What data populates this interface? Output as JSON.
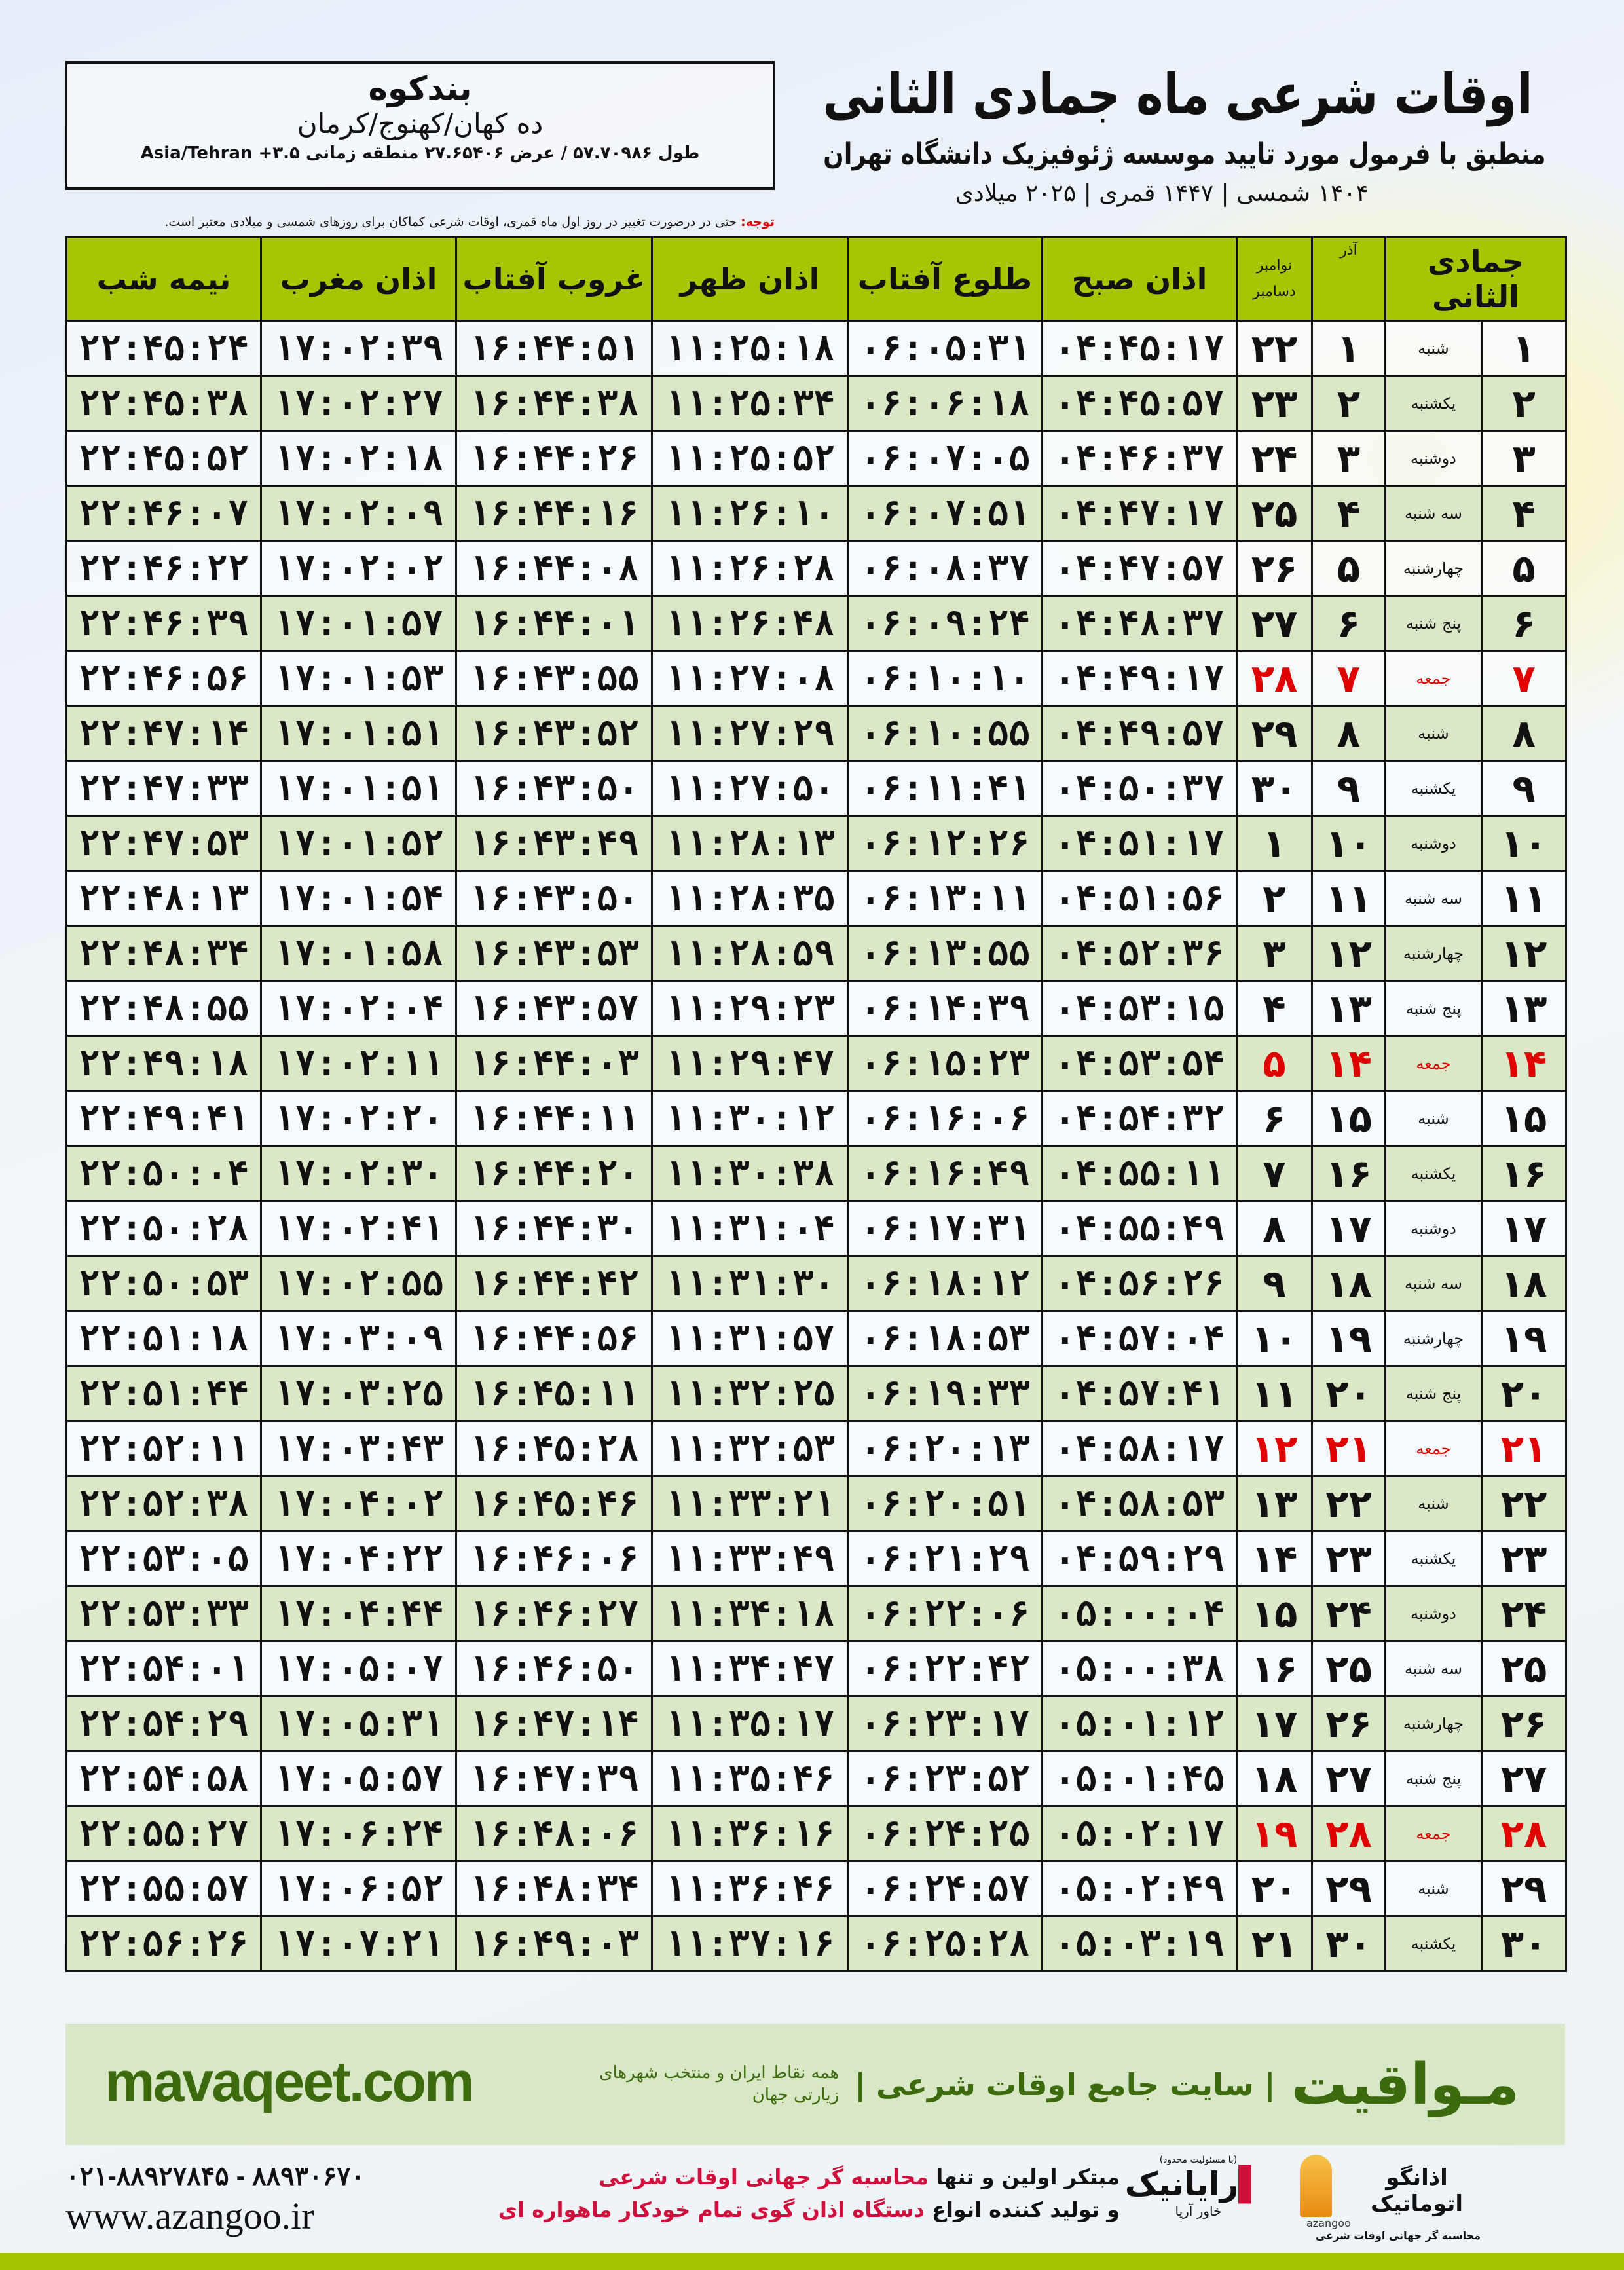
{
  "header": {
    "title": "اوقات شرعی ماه جمادی الثانی",
    "subtitle": "منطبق با فرمول مورد تایید موسسه ژئوفیزیک دانشگاه تهران",
    "years": "۱۴۰۴ شمسی | ۱۴۴۷ قمری | ۲۰۲۵ میلادی"
  },
  "location": {
    "city": "بندکوه",
    "region": "ده کهان/کهنوج/کرمان",
    "coords": "طول ۵۷.۷۰۹۸۶ / عرض ۲۷.۶۵۴۰۶ منطقه زمانی ۳.۵+ Asia/Tehran"
  },
  "note": {
    "label": "توجه:",
    "text": " حتی در درصورت تغییر در روز اول ماه قمری، اوقات شرعی کماکان برای روزهای شمسی و میلادی معتبر است."
  },
  "table": {
    "columns": {
      "hijri": "جمادی الثانی",
      "azar": "آذر",
      "greg_top": "نوامبر",
      "greg_bottom": "دسامبر",
      "fajr": "اذان صبح",
      "sunrise": "طلوع آفتاب",
      "dhuhr": "اذان ظهر",
      "sunset": "غروب آفتاب",
      "maghrib": "اذان مغرب",
      "midnight": "نیمه شب"
    },
    "friday_color": "#e00000",
    "header_color": "#a7c500",
    "rows": [
      [
        "۱",
        "شنبه",
        "۱",
        "۲۲",
        "۰۴:۴۵:۱۷",
        "۰۶:۰۵:۳۱",
        "۱۱:۲۵:۱۸",
        "۱۶:۴۴:۵۱",
        "۱۷:۰۲:۳۹",
        "۲۲:۴۵:۲۴"
      ],
      [
        "۲",
        "یکشنبه",
        "۲",
        "۲۳",
        "۰۴:۴۵:۵۷",
        "۰۶:۰۶:۱۸",
        "۱۱:۲۵:۳۴",
        "۱۶:۴۴:۳۸",
        "۱۷:۰۲:۲۷",
        "۲۲:۴۵:۳۸"
      ],
      [
        "۳",
        "دوشنبه",
        "۳",
        "۲۴",
        "۰۴:۴۶:۳۷",
        "۰۶:۰۷:۰۵",
        "۱۱:۲۵:۵۲",
        "۱۶:۴۴:۲۶",
        "۱۷:۰۲:۱۸",
        "۲۲:۴۵:۵۲"
      ],
      [
        "۴",
        "سه شنبه",
        "۴",
        "۲۵",
        "۰۴:۴۷:۱۷",
        "۰۶:۰۷:۵۱",
        "۱۱:۲۶:۱۰",
        "۱۶:۴۴:۱۶",
        "۱۷:۰۲:۰۹",
        "۲۲:۴۶:۰۷"
      ],
      [
        "۵",
        "چهارشنبه",
        "۵",
        "۲۶",
        "۰۴:۴۷:۵۷",
        "۰۶:۰۸:۳۷",
        "۱۱:۲۶:۲۸",
        "۱۶:۴۴:۰۸",
        "۱۷:۰۲:۰۲",
        "۲۲:۴۶:۲۲"
      ],
      [
        "۶",
        "پنج شنبه",
        "۶",
        "۲۷",
        "۰۴:۴۸:۳۷",
        "۰۶:۰۹:۲۴",
        "۱۱:۲۶:۴۸",
        "۱۶:۴۴:۰۱",
        "۱۷:۰۱:۵۷",
        "۲۲:۴۶:۳۹"
      ],
      [
        "۷",
        "جمعه",
        "۷",
        "۲۸",
        "۰۴:۴۹:۱۷",
        "۰۶:۱۰:۱۰",
        "۱۱:۲۷:۰۸",
        "۱۶:۴۳:۵۵",
        "۱۷:۰۱:۵۳",
        "۲۲:۴۶:۵۶"
      ],
      [
        "۸",
        "شنبه",
        "۸",
        "۲۹",
        "۰۴:۴۹:۵۷",
        "۰۶:۱۰:۵۵",
        "۱۱:۲۷:۲۹",
        "۱۶:۴۳:۵۲",
        "۱۷:۰۱:۵۱",
        "۲۲:۴۷:۱۴"
      ],
      [
        "۹",
        "یکشنبه",
        "۹",
        "۳۰",
        "۰۴:۵۰:۳۷",
        "۰۶:۱۱:۴۱",
        "۱۱:۲۷:۵۰",
        "۱۶:۴۳:۵۰",
        "۱۷:۰۱:۵۱",
        "۲۲:۴۷:۳۳"
      ],
      [
        "۱۰",
        "دوشنبه",
        "۱۰",
        "۱",
        "۰۴:۵۱:۱۷",
        "۰۶:۱۲:۲۶",
        "۱۱:۲۸:۱۳",
        "۱۶:۴۳:۴۹",
        "۱۷:۰۱:۵۲",
        "۲۲:۴۷:۵۳"
      ],
      [
        "۱۱",
        "سه شنبه",
        "۱۱",
        "۲",
        "۰۴:۵۱:۵۶",
        "۰۶:۱۳:۱۱",
        "۱۱:۲۸:۳۵",
        "۱۶:۴۳:۵۰",
        "۱۷:۰۱:۵۴",
        "۲۲:۴۸:۱۳"
      ],
      [
        "۱۲",
        "چهارشنبه",
        "۱۲",
        "۳",
        "۰۴:۵۲:۳۶",
        "۰۶:۱۳:۵۵",
        "۱۱:۲۸:۵۹",
        "۱۶:۴۳:۵۳",
        "۱۷:۰۱:۵۸",
        "۲۲:۴۸:۳۴"
      ],
      [
        "۱۳",
        "پنج شنبه",
        "۱۳",
        "۴",
        "۰۴:۵۳:۱۵",
        "۰۶:۱۴:۳۹",
        "۱۱:۲۹:۲۳",
        "۱۶:۴۳:۵۷",
        "۱۷:۰۲:۰۴",
        "۲۲:۴۸:۵۵"
      ],
      [
        "۱۴",
        "جمعه",
        "۱۴",
        "۵",
        "۰۴:۵۳:۵۴",
        "۰۶:۱۵:۲۳",
        "۱۱:۲۹:۴۷",
        "۱۶:۴۴:۰۳",
        "۱۷:۰۲:۱۱",
        "۲۲:۴۹:۱۸"
      ],
      [
        "۱۵",
        "شنبه",
        "۱۵",
        "۶",
        "۰۴:۵۴:۳۲",
        "۰۶:۱۶:۰۶",
        "۱۱:۳۰:۱۲",
        "۱۶:۴۴:۱۱",
        "۱۷:۰۲:۲۰",
        "۲۲:۴۹:۴۱"
      ],
      [
        "۱۶",
        "یکشنبه",
        "۱۶",
        "۷",
        "۰۴:۵۵:۱۱",
        "۰۶:۱۶:۴۹",
        "۱۱:۳۰:۳۸",
        "۱۶:۴۴:۲۰",
        "۱۷:۰۲:۳۰",
        "۲۲:۵۰:۰۴"
      ],
      [
        "۱۷",
        "دوشنبه",
        "۱۷",
        "۸",
        "۰۴:۵۵:۴۹",
        "۰۶:۱۷:۳۱",
        "۱۱:۳۱:۰۴",
        "۱۶:۴۴:۳۰",
        "۱۷:۰۲:۴۱",
        "۲۲:۵۰:۲۸"
      ],
      [
        "۱۸",
        "سه شنبه",
        "۱۸",
        "۹",
        "۰۴:۵۶:۲۶",
        "۰۶:۱۸:۱۲",
        "۱۱:۳۱:۳۰",
        "۱۶:۴۴:۴۲",
        "۱۷:۰۲:۵۵",
        "۲۲:۵۰:۵۳"
      ],
      [
        "۱۹",
        "چهارشنبه",
        "۱۹",
        "۱۰",
        "۰۴:۵۷:۰۴",
        "۰۶:۱۸:۵۳",
        "۱۱:۳۱:۵۷",
        "۱۶:۴۴:۵۶",
        "۱۷:۰۳:۰۹",
        "۲۲:۵۱:۱۸"
      ],
      [
        "۲۰",
        "پنج شنبه",
        "۲۰",
        "۱۱",
        "۰۴:۵۷:۴۱",
        "۰۶:۱۹:۳۳",
        "۱۱:۳۲:۲۵",
        "۱۶:۴۵:۱۱",
        "۱۷:۰۳:۲۵",
        "۲۲:۵۱:۴۴"
      ],
      [
        "۲۱",
        "جمعه",
        "۲۱",
        "۱۲",
        "۰۴:۵۸:۱۷",
        "۰۶:۲۰:۱۳",
        "۱۱:۳۲:۵۳",
        "۱۶:۴۵:۲۸",
        "۱۷:۰۳:۴۳",
        "۲۲:۵۲:۱۱"
      ],
      [
        "۲۲",
        "شنبه",
        "۲۲",
        "۱۳",
        "۰۴:۵۸:۵۳",
        "۰۶:۲۰:۵۱",
        "۱۱:۳۳:۲۱",
        "۱۶:۴۵:۴۶",
        "۱۷:۰۴:۰۲",
        "۲۲:۵۲:۳۸"
      ],
      [
        "۲۳",
        "یکشنبه",
        "۲۳",
        "۱۴",
        "۰۴:۵۹:۲۹",
        "۰۶:۲۱:۲۹",
        "۱۱:۳۳:۴۹",
        "۱۶:۴۶:۰۶",
        "۱۷:۰۴:۲۲",
        "۲۲:۵۳:۰۵"
      ],
      [
        "۲۴",
        "دوشنبه",
        "۲۴",
        "۱۵",
        "۰۵:۰۰:۰۴",
        "۰۶:۲۲:۰۶",
        "۱۱:۳۴:۱۸",
        "۱۶:۴۶:۲۷",
        "۱۷:۰۴:۴۴",
        "۲۲:۵۳:۳۳"
      ],
      [
        "۲۵",
        "سه شنبه",
        "۲۵",
        "۱۶",
        "۰۵:۰۰:۳۸",
        "۰۶:۲۲:۴۲",
        "۱۱:۳۴:۴۷",
        "۱۶:۴۶:۵۰",
        "۱۷:۰۵:۰۷",
        "۲۲:۵۴:۰۱"
      ],
      [
        "۲۶",
        "چهارشنبه",
        "۲۶",
        "۱۷",
        "۰۵:۰۱:۱۲",
        "۰۶:۲۳:۱۷",
        "۱۱:۳۵:۱۷",
        "۱۶:۴۷:۱۴",
        "۱۷:۰۵:۳۱",
        "۲۲:۵۴:۲۹"
      ],
      [
        "۲۷",
        "پنج شنبه",
        "۲۷",
        "۱۸",
        "۰۵:۰۱:۴۵",
        "۰۶:۲۳:۵۲",
        "۱۱:۳۵:۴۶",
        "۱۶:۴۷:۳۹",
        "۱۷:۰۵:۵۷",
        "۲۲:۵۴:۵۸"
      ],
      [
        "۲۸",
        "جمعه",
        "۲۸",
        "۱۹",
        "۰۵:۰۲:۱۷",
        "۰۶:۲۴:۲۵",
        "۱۱:۳۶:۱۶",
        "۱۶:۴۸:۰۶",
        "۱۷:۰۶:۲۴",
        "۲۲:۵۵:۲۷"
      ],
      [
        "۲۹",
        "شنبه",
        "۲۹",
        "۲۰",
        "۰۵:۰۲:۴۹",
        "۰۶:۲۴:۵۷",
        "۱۱:۳۶:۴۶",
        "۱۶:۴۸:۳۴",
        "۱۷:۰۶:۵۲",
        "۲۲:۵۵:۵۷"
      ],
      [
        "۳۰",
        "یکشنبه",
        "۳۰",
        "۲۱",
        "۰۵:۰۳:۱۹",
        "۰۶:۲۵:۲۸",
        "۱۱:۳۷:۱۶",
        "۱۶:۴۹:۰۳",
        "۱۷:۰۷:۲۱",
        "۲۲:۵۶:۲۶"
      ]
    ]
  },
  "footer": {
    "brand": "مـواقیت",
    "slogan": "| سایت جامع اوقات شرعی |",
    "slogan2": "همه نقاط ایران و منتخب شهرهای زیارتی جهان",
    "site": "mavaqeet.com",
    "phone": "۰۲۱-۸۸۹۲۷۸۴۵ - ۸۸۹۳۰۶۷۰",
    "web": "www.azangoo.ir",
    "promo_1a": "مبتکر اولین و تنها ",
    "promo_1b": "محاسبه گر جهانی اوقات شرعی",
    "promo_2a": "و تولید کننده انواع ",
    "promo_2b": "دستگاه اذان گوی تمام خودکار ماهواره ای",
    "logo_rayanik": "رایانیک",
    "logo_rayanik_sub": "خاور آریا",
    "logo_rayanik_top": "(با مسئولیت محدود)",
    "logo_azangoo": "اذانگو اتوماتیک",
    "logo_azangoo_sub": "محاسبه گر جهانی اوقات شرعی",
    "logo_azangoo_en": "azangoo",
    "accent_green": "#3d6a0c",
    "accent_red": "#d0103a"
  }
}
